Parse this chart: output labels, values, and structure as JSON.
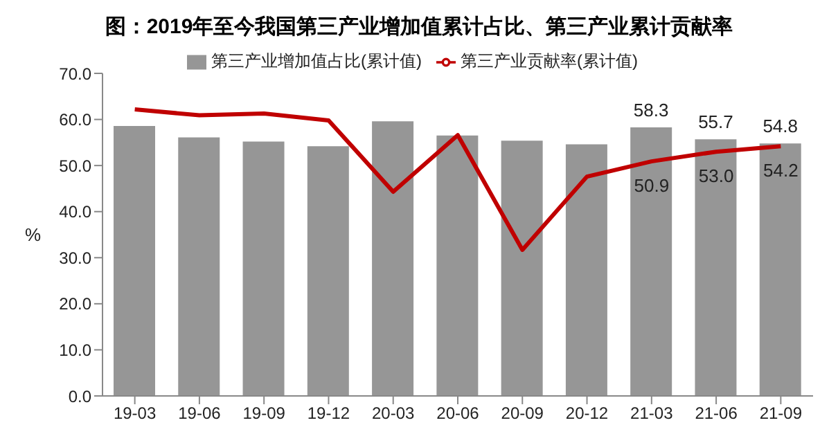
{
  "chart_data": {
    "type": "bar",
    "title": "图：2019年至今我国第三产业增加值累计占比、第三产业累计贡献率",
    "ylabel": "%",
    "categories": [
      "19-03",
      "19-06",
      "19-09",
      "19-12",
      "20-03",
      "20-06",
      "20-09",
      "20-12",
      "21-03",
      "21-06",
      "21-09"
    ],
    "series": [
      {
        "name": "第三产业增加值占比(累计值)",
        "color": "#969696",
        "values": [
          58.6,
          56.1,
          55.2,
          54.2,
          59.6,
          56.5,
          55.4,
          54.6,
          58.3,
          55.7,
          54.8
        ],
        "value_labels": [
          null,
          null,
          null,
          null,
          null,
          null,
          null,
          null,
          "58.3",
          "55.7",
          "54.8"
        ]
      },
      {
        "name": "第三产业贡献率(累计值)",
        "type": "line",
        "color": "#c00000",
        "values": [
          62.2,
          60.9,
          61.3,
          59.8,
          44.3,
          56.6,
          31.7,
          47.6,
          50.9,
          53.0,
          54.2
        ],
        "value_labels": [
          null,
          null,
          null,
          null,
          null,
          null,
          null,
          null,
          "50.9",
          "53.0",
          "54.2"
        ]
      }
    ],
    "ylim": [
      0,
      70
    ],
    "yticks": [
      {
        "value": 0,
        "label": "0.0"
      },
      {
        "value": 10,
        "label": "10.0"
      },
      {
        "value": 20,
        "label": "20.0"
      },
      {
        "value": 30,
        "label": "30.0"
      },
      {
        "value": 40,
        "label": "40.0"
      },
      {
        "value": 50,
        "label": "50.0"
      },
      {
        "value": 60,
        "label": "60.0"
      },
      {
        "value": 70,
        "label": "70.0"
      }
    ],
    "grid": false,
    "legend": "top",
    "marker": "none",
    "line_style": "solid"
  }
}
